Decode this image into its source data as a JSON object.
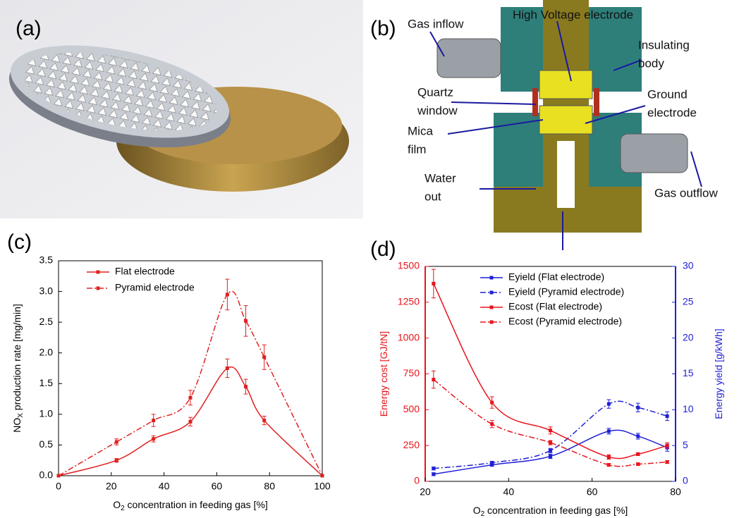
{
  "panel_labels": [
    "(a)",
    "(b)",
    "(c)",
    "(d)"
  ],
  "diagram": {
    "labels": [
      [
        "Gas inflow"
      ],
      [
        "High Voltage electrode"
      ],
      [
        "Insulating",
        "body"
      ],
      [
        "Quartz",
        "window"
      ],
      [
        "Ground",
        "electrode"
      ],
      [
        "Mica",
        "film"
      ],
      [
        "Water",
        "out"
      ],
      [
        "Gas outflow"
      ]
    ]
  },
  "chart_data": [
    {
      "type": "line",
      "xlabel": [
        "O",
        "2",
        " concentration in feeding gas [%]"
      ],
      "ylabel": [
        "NO",
        "X",
        " production rate [mg/min]"
      ],
      "x": [
        0,
        22,
        36,
        50,
        64,
        71,
        78,
        100
      ],
      "xlim": [
        0,
        100
      ],
      "xticks": [
        0,
        20,
        40,
        60,
        80,
        100
      ],
      "ylim": [
        0,
        3.5
      ],
      "yticks": [
        {
          "value": 0,
          "label": "0.0"
        },
        0.5,
        {
          "value": 1,
          "label": "1.0"
        },
        1.5,
        {
          "value": 2,
          "label": "2.0"
        },
        2.5,
        {
          "value": 3,
          "label": "3.0"
        },
        3.5
      ],
      "legend": "upper left",
      "y_color": "#000000",
      "series": [
        {
          "name": "Flat electrode",
          "color": "#e02020",
          "dash": "solid",
          "values": [
            0,
            0.25,
            0.6,
            0.88,
            1.75,
            1.45,
            0.9,
            0
          ],
          "errors": [
            0,
            0.03,
            0.05,
            0.07,
            0.15,
            0.12,
            0.07,
            0
          ]
        },
        {
          "name": "Pyramid electrode",
          "color": "#e02020",
          "dash": "dashdot",
          "values": [
            0,
            0.55,
            0.9,
            1.27,
            2.95,
            2.52,
            1.93,
            0
          ],
          "errors": [
            0,
            0.05,
            0.1,
            0.12,
            0.25,
            0.25,
            0.2,
            0
          ]
        }
      ]
    },
    {
      "type": "line",
      "xlabel": [
        "O",
        "2",
        " concentration in feeding gas [%]"
      ],
      "ylabel": [
        "Energy cost [GJ/tN]"
      ],
      "y2label": [
        "Energy yield [g/kWh]"
      ],
      "x": [
        22,
        36,
        50,
        64,
        71,
        78
      ],
      "xlim": [
        20,
        80
      ],
      "xticks": [
        20,
        40,
        60,
        80
      ],
      "ylim": [
        0,
        1500
      ],
      "yticks": [
        0,
        250,
        500,
        750,
        1000,
        1250,
        1500
      ],
      "y2lim": [
        0,
        30
      ],
      "y2ticks": [
        0,
        5,
        10,
        15,
        20,
        25,
        30
      ],
      "legend": "upper center",
      "y_color": "#e8131b",
      "y2_color": "#1f1fd6",
      "series": [
        {
          "name": "Eyield (Flat electrode)",
          "color": "#1f1fd6",
          "dash": "solid",
          "axis": "y2",
          "values": [
            1,
            2.3,
            3.5,
            7,
            6.3,
            4.7
          ],
          "errors": [
            0.2,
            0.2,
            0.3,
            0.4,
            0.4,
            0.5
          ]
        },
        {
          "name": "Eyield (Pyramid electrode)",
          "color": "#1f1fd6",
          "dash": "dashdot",
          "axis": "y2",
          "values": [
            1.8,
            2.6,
            4.3,
            10.8,
            10.3,
            9.1
          ],
          "errors": [
            0.2,
            0.2,
            0.3,
            0.6,
            0.6,
            0.6
          ]
        },
        {
          "name": "Ecost (Flat electrode)",
          "color": "#e8131b",
          "dash": "solid",
          "values": [
            1380,
            550,
            355,
            170,
            190,
            250
          ],
          "errors": [
            100,
            40,
            25,
            15,
            10,
            20
          ]
        },
        {
          "name": "Ecost (Pyramid electrode)",
          "color": "#e8131b",
          "dash": "dashdot",
          "values": [
            710,
            400,
            270,
            115,
            120,
            135
          ],
          "errors": [
            60,
            25,
            15,
            10,
            8,
            10
          ]
        }
      ]
    }
  ]
}
